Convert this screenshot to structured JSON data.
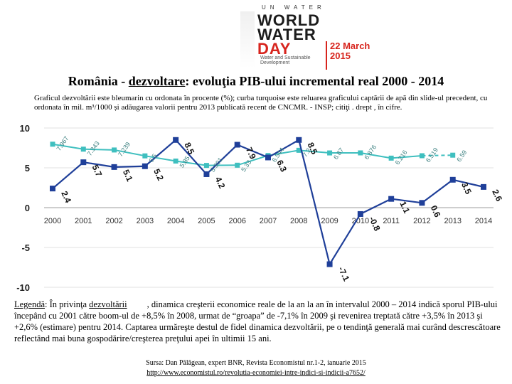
{
  "header": {
    "logo_un": "UN WATER",
    "logo_line1": "WORLD",
    "logo_line2": "WATER",
    "logo_line3": "DAY",
    "logo_subtitle": "Water and Sustainable Development",
    "logo_date": "22 March 2015",
    "title_prefix": "România - ",
    "title_link": "dezvoltare",
    "title_suffix": ": evoluţia PIB-ului incremental real 2000 - 2014",
    "description": "Graficul dezvoltării este bleumarin cu ordonata în procente (%); curba turquoise este reluarea graficului captării de apă din slide-ul precedent, cu ordonata în mil. m³/1000 și adăugarea valorii pentru 2013 publicată recent de CNCMR. - INSP; citiţi . drept , în cifre."
  },
  "chart_data": {
    "type": "line",
    "categories": [
      "2000",
      "2001",
      "2002",
      "2003",
      "2004",
      "2005",
      "2006",
      "2007",
      "2008",
      "2009",
      "2010",
      "2011",
      "2012",
      "2013",
      "2014"
    ],
    "ylim": [
      -10,
      10
    ],
    "yticks": [
      "10",
      "5",
      "0",
      "-5",
      "-10"
    ],
    "series": [
      {
        "name": "PIB real (%)",
        "color": "#1f3f99",
        "values": [
          2.4,
          5.7,
          5.1,
          5.2,
          8.5,
          4.2,
          7.9,
          6.3,
          8.5,
          -7.1,
          -0.8,
          1.1,
          0.6,
          3.5,
          2.6
        ],
        "labels": [
          "2.4",
          "5.7",
          "5.1",
          "5.2",
          "8.5",
          "4.2",
          "7.9",
          "6.3",
          "8.5",
          "-7.1",
          "-0.8",
          "1.1",
          "0.6",
          "3.5",
          "2.6"
        ]
      },
      {
        "name": "Captarea de apă (mil. m³/1000)",
        "color": "#3fbfbf",
        "values": [
          7.967,
          7.343,
          7.239,
          6.5,
          5.85,
          5.301,
          5.33,
          6.544,
          7.2,
          6.87,
          6.876,
          6.216,
          6.519,
          6.59,
          null
        ],
        "labels": [
          "7.967",
          "7.343",
          "7.239",
          "6.5",
          "5.85",
          "5.301",
          "5.33",
          "6.544",
          "7.2",
          "6.87",
          "6.876",
          "6.216",
          "6.519",
          "6.59",
          ""
        ]
      }
    ]
  },
  "legend": {
    "lead": "Legendă",
    "text_a": ": În privinţa ",
    "link": "dezvoltării",
    "text_b": ", dinamica creşterii economice reale de la an la an în intervalul 2000 – 2014 indică sporul PIB-ului începând cu 2001 către boom-ul de +8,5% în 2008, urmat de “groapa” de -7,1% în 2009 şi revenirea treptată către +3,5% în 2013 şi +2,6% (estimare) pentru 2014. Captarea urmăreşte destul de fidel dinamica dezvoltării, pe o tendinţă generală mai curând descrescătoare reflectând mai buna gospodărire/creşterea preţului apei în ultimii 15 ani."
  },
  "source": {
    "text": "Sursa: Dan Pălăgean, expert BNR, Revista Economistul nr.1-2, ianuarie 2015",
    "url": "http://www.economistul.ro/revolutia-economiei-intre-indici-si-indicii-a7652/"
  }
}
